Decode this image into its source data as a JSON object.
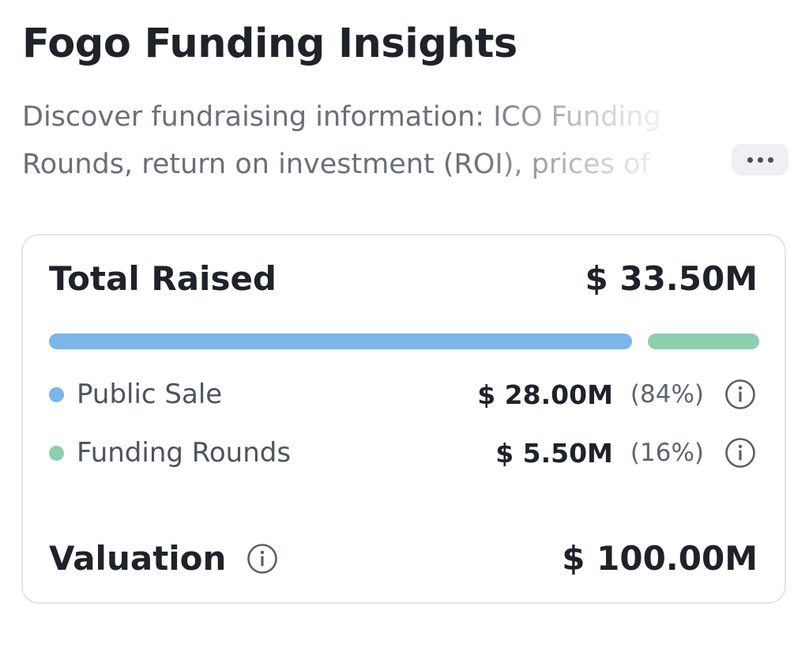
{
  "header": {
    "title": "Fogo Funding Insights",
    "description": "Discover fundraising information: ICO Funding Rounds, return on investment (ROI), prices of",
    "more_icon": "more-horizontal-icon"
  },
  "funding": {
    "total_label": "Total Raised",
    "total_value": "$ 33.50M",
    "segments": [
      {
        "name": "Public Sale",
        "amount": "$ 28.00M",
        "percent": "(84%)",
        "share": 0.84,
        "color": "#7cb5e6",
        "icon": "info-icon"
      },
      {
        "name": "Funding Rounds",
        "amount": "$ 5.50M",
        "percent": "(16%)",
        "share": 0.16,
        "color": "#8dcfb0",
        "icon": "info-icon"
      }
    ],
    "valuation_label": "Valuation",
    "valuation_value": "$ 100.00M",
    "valuation_icon": "info-icon"
  },
  "colors": {
    "text_primary": "#1f2329",
    "text_secondary": "#6b6f76",
    "card_border": "#e3e5e8",
    "public_sale": "#7cb5e6",
    "funding_rounds": "#8dcfb0"
  }
}
